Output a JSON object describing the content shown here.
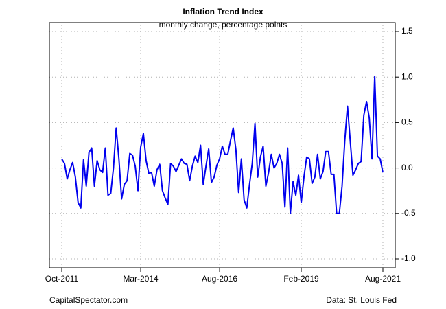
{
  "chart_data": {
    "type": "line",
    "title": "Inflation Trend Index",
    "subtitle": "monthly change, percentage points",
    "source_left": "CapitalSpectator.com",
    "source_right": "Data: St. Louis Fed",
    "x": [
      "2011-10",
      "2011-11",
      "2011-12",
      "2012-01",
      "2012-02",
      "2012-03",
      "2012-04",
      "2012-05",
      "2012-06",
      "2012-07",
      "2012-08",
      "2012-09",
      "2012-10",
      "2012-11",
      "2012-12",
      "2013-01",
      "2013-02",
      "2013-03",
      "2013-04",
      "2013-05",
      "2013-06",
      "2013-07",
      "2013-08",
      "2013-09",
      "2013-10",
      "2013-11",
      "2013-12",
      "2014-01",
      "2014-02",
      "2014-03",
      "2014-04",
      "2014-05",
      "2014-06",
      "2014-07",
      "2014-08",
      "2014-09",
      "2014-10",
      "2014-11",
      "2014-12",
      "2015-01",
      "2015-02",
      "2015-03",
      "2015-04",
      "2015-05",
      "2015-06",
      "2015-07",
      "2015-08",
      "2015-09",
      "2015-10",
      "2015-11",
      "2015-12",
      "2016-01",
      "2016-02",
      "2016-03",
      "2016-04",
      "2016-05",
      "2016-06",
      "2016-07",
      "2016-08",
      "2016-09",
      "2016-10",
      "2016-11",
      "2016-12",
      "2017-01",
      "2017-02",
      "2017-03",
      "2017-04",
      "2017-05",
      "2017-06",
      "2017-07",
      "2017-08",
      "2017-09",
      "2017-10",
      "2017-11",
      "2017-12",
      "2018-01",
      "2018-02",
      "2018-03",
      "2018-04",
      "2018-05",
      "2018-06",
      "2018-07",
      "2018-08",
      "2018-09",
      "2018-10",
      "2018-11",
      "2018-12",
      "2019-01",
      "2019-02",
      "2019-03",
      "2019-04",
      "2019-05",
      "2019-06",
      "2019-07",
      "2019-08",
      "2019-09",
      "2019-10",
      "2019-11",
      "2019-12",
      "2020-01",
      "2020-02",
      "2020-03",
      "2020-04",
      "2020-05",
      "2020-06",
      "2020-07",
      "2020-08",
      "2020-09",
      "2020-10",
      "2020-11",
      "2020-12",
      "2021-01",
      "2021-02",
      "2021-03",
      "2021-04",
      "2021-05",
      "2021-06",
      "2021-07",
      "2021-08"
    ],
    "series": [
      {
        "name": "Inflation Trend Index",
        "color": "#0000ee",
        "values": [
          0.1,
          0.05,
          -0.12,
          -0.02,
          0.06,
          -0.1,
          -0.38,
          -0.44,
          0.09,
          -0.2,
          0.17,
          0.22,
          -0.2,
          0.08,
          -0.02,
          -0.05,
          0.22,
          -0.3,
          -0.28,
          0.0,
          0.44,
          0.1,
          -0.34,
          -0.18,
          -0.14,
          0.16,
          0.14,
          0.02,
          -0.25,
          0.23,
          0.38,
          0.08,
          -0.06,
          -0.05,
          -0.2,
          -0.02,
          0.04,
          -0.25,
          -0.33,
          -0.4,
          0.05,
          0.02,
          -0.04,
          0.03,
          0.1,
          0.05,
          0.04,
          -0.14,
          0.02,
          0.13,
          0.06,
          0.25,
          -0.18,
          0.02,
          0.21,
          -0.16,
          -0.1,
          0.03,
          0.1,
          0.24,
          0.15,
          0.15,
          0.3,
          0.44,
          0.2,
          -0.27,
          0.1,
          -0.35,
          -0.44,
          -0.18,
          0.05,
          0.49,
          -0.1,
          0.12,
          0.24,
          -0.2,
          -0.05,
          0.15,
          0.0,
          0.05,
          0.15,
          0.05,
          -0.43,
          0.22,
          -0.5,
          -0.15,
          -0.3,
          -0.08,
          -0.38,
          -0.1,
          0.12,
          0.1,
          -0.17,
          -0.1,
          0.15,
          -0.12,
          -0.04,
          0.18,
          0.18,
          -0.07,
          -0.07,
          -0.5,
          -0.5,
          -0.2,
          0.3,
          0.68,
          0.3,
          -0.08,
          -0.02,
          0.05,
          0.07,
          0.58,
          0.73,
          0.55,
          0.1,
          1.01,
          0.13,
          0.1,
          -0.05
        ]
      }
    ],
    "xlim": [
      "2011-10",
      "2021-08"
    ],
    "xticks": [
      {
        "value": "2011-10",
        "label": "Oct-2011"
      },
      {
        "value": "2014-03",
        "label": "Mar-2014"
      },
      {
        "value": "2016-08",
        "label": "Aug-2016"
      },
      {
        "value": "2019-02",
        "label": "Feb-2019"
      },
      {
        "value": "2021-08",
        "label": "Aug-2021"
      }
    ],
    "ylim": [
      -1.0,
      1.5
    ],
    "yticks": [
      {
        "value": -1.0,
        "label": "-1.0"
      },
      -0.5,
      {
        "value": 0.0,
        "label": "0.0"
      },
      0.5,
      {
        "value": 1.0,
        "label": "1.0"
      },
      1.5
    ],
    "grid": true
  }
}
